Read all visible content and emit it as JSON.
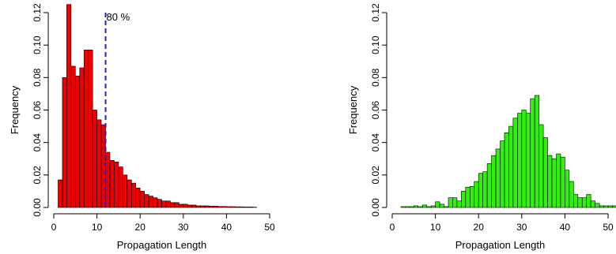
{
  "chart_data": [
    {
      "type": "bar",
      "title": "",
      "xlabel": "Propagation Length",
      "ylabel": "Frequency",
      "xlim": [
        0,
        50
      ],
      "ylim": [
        0,
        0.12
      ],
      "xticks": [
        "0",
        "10",
        "20",
        "30",
        "40",
        "50"
      ],
      "yticks": [
        "0.00",
        "0.02",
        "0.04",
        "0.06",
        "0.08",
        "0.10",
        "0.12"
      ],
      "bin_start": 1,
      "bin_width": 1,
      "values": [
        0.017,
        0.08,
        0.125,
        0.087,
        0.081,
        0.086,
        0.097,
        0.097,
        0.06,
        0.054,
        0.051,
        0.034,
        0.029,
        0.028,
        0.025,
        0.02,
        0.017,
        0.015,
        0.012,
        0.01,
        0.008,
        0.007,
        0.006,
        0.005,
        0.004,
        0.004,
        0.003,
        0.003,
        0.002,
        0.002,
        0.0015,
        0.0015,
        0.001,
        0.001,
        0.001,
        0.0008,
        0.0008,
        0.0006,
        0.0006,
        0.0005,
        0.0005,
        0.0004,
        0.0004,
        0.0003,
        0.0003,
        0.0002
      ],
      "bar_color": "#ee0000",
      "annotation": {
        "x": 12,
        "label": "80 %",
        "color": "#2222cc"
      },
      "grid": false
    },
    {
      "type": "bar",
      "title": "",
      "xlabel": "Propagation Length",
      "ylabel": "Frequency",
      "xlim": [
        0,
        50
      ],
      "ylim": [
        0,
        0.12
      ],
      "xticks": [
        "0",
        "10",
        "20",
        "30",
        "40",
        "50"
      ],
      "yticks": [
        "0.00",
        "0.02",
        "0.04",
        "0.06",
        "0.08",
        "0.10",
        "0.12"
      ],
      "bin_start": 2,
      "bin_width": 1,
      "values": [
        0.0005,
        0.0005,
        0.0005,
        0.001,
        0.0005,
        0.0015,
        0.0005,
        0.001,
        0.0035,
        0.002,
        0.0005,
        0.006,
        0.006,
        0.004,
        0.01,
        0.0125,
        0.013,
        0.016,
        0.021,
        0.022,
        0.027,
        0.032,
        0.036,
        0.041,
        0.046,
        0.05,
        0.055,
        0.058,
        0.06,
        0.058,
        0.067,
        0.069,
        0.051,
        0.043,
        0.032,
        0.03,
        0.033,
        0.031,
        0.023,
        0.016,
        0.008,
        0.006,
        0.006,
        0.008,
        0.004,
        0.0025,
        0.001,
        0.001,
        0.001,
        0.001
      ],
      "bar_color": "#33ee11",
      "grid": false
    }
  ]
}
